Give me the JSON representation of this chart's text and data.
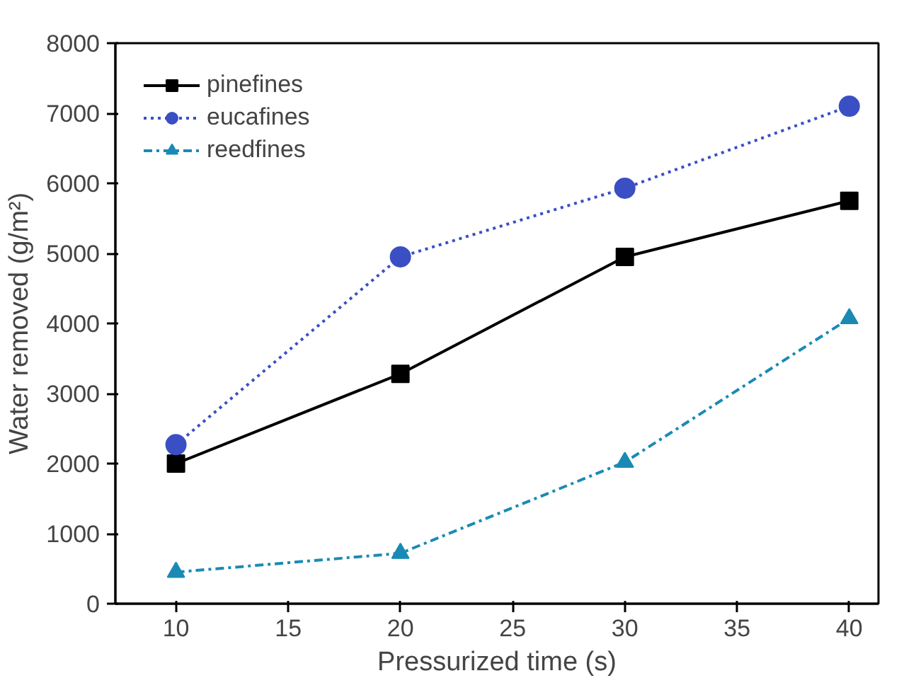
{
  "chart_data": {
    "type": "line",
    "xlabel": "Pressurized time (s)",
    "ylabel": "Water removed (g/m²)",
    "x": [
      10,
      20,
      30,
      40
    ],
    "series": [
      {
        "name": "pinefines",
        "color": "#000000",
        "values": [
          2000,
          3280,
          4950,
          5750
        ],
        "marker": "square",
        "line_style": "solid"
      },
      {
        "name": "eucafines",
        "color": "#3a4fc4",
        "values": [
          2270,
          4950,
          5930,
          7100
        ],
        "marker": "circle",
        "line_style": "dotted"
      },
      {
        "name": "reedfines",
        "color": "#1a8ab4",
        "values": [
          450,
          720,
          2020,
          4070
        ],
        "marker": "triangle",
        "line_style": "dashed"
      }
    ],
    "xlim": [
      7.3,
      41.3
    ],
    "ylim": [
      0,
      8000
    ],
    "xticks": [
      10,
      15,
      20,
      25,
      30,
      35,
      40
    ],
    "yticks": [
      0,
      1000,
      2000,
      3000,
      4000,
      5000,
      6000,
      7000,
      8000
    ],
    "grid": false,
    "legend": "top left"
  }
}
